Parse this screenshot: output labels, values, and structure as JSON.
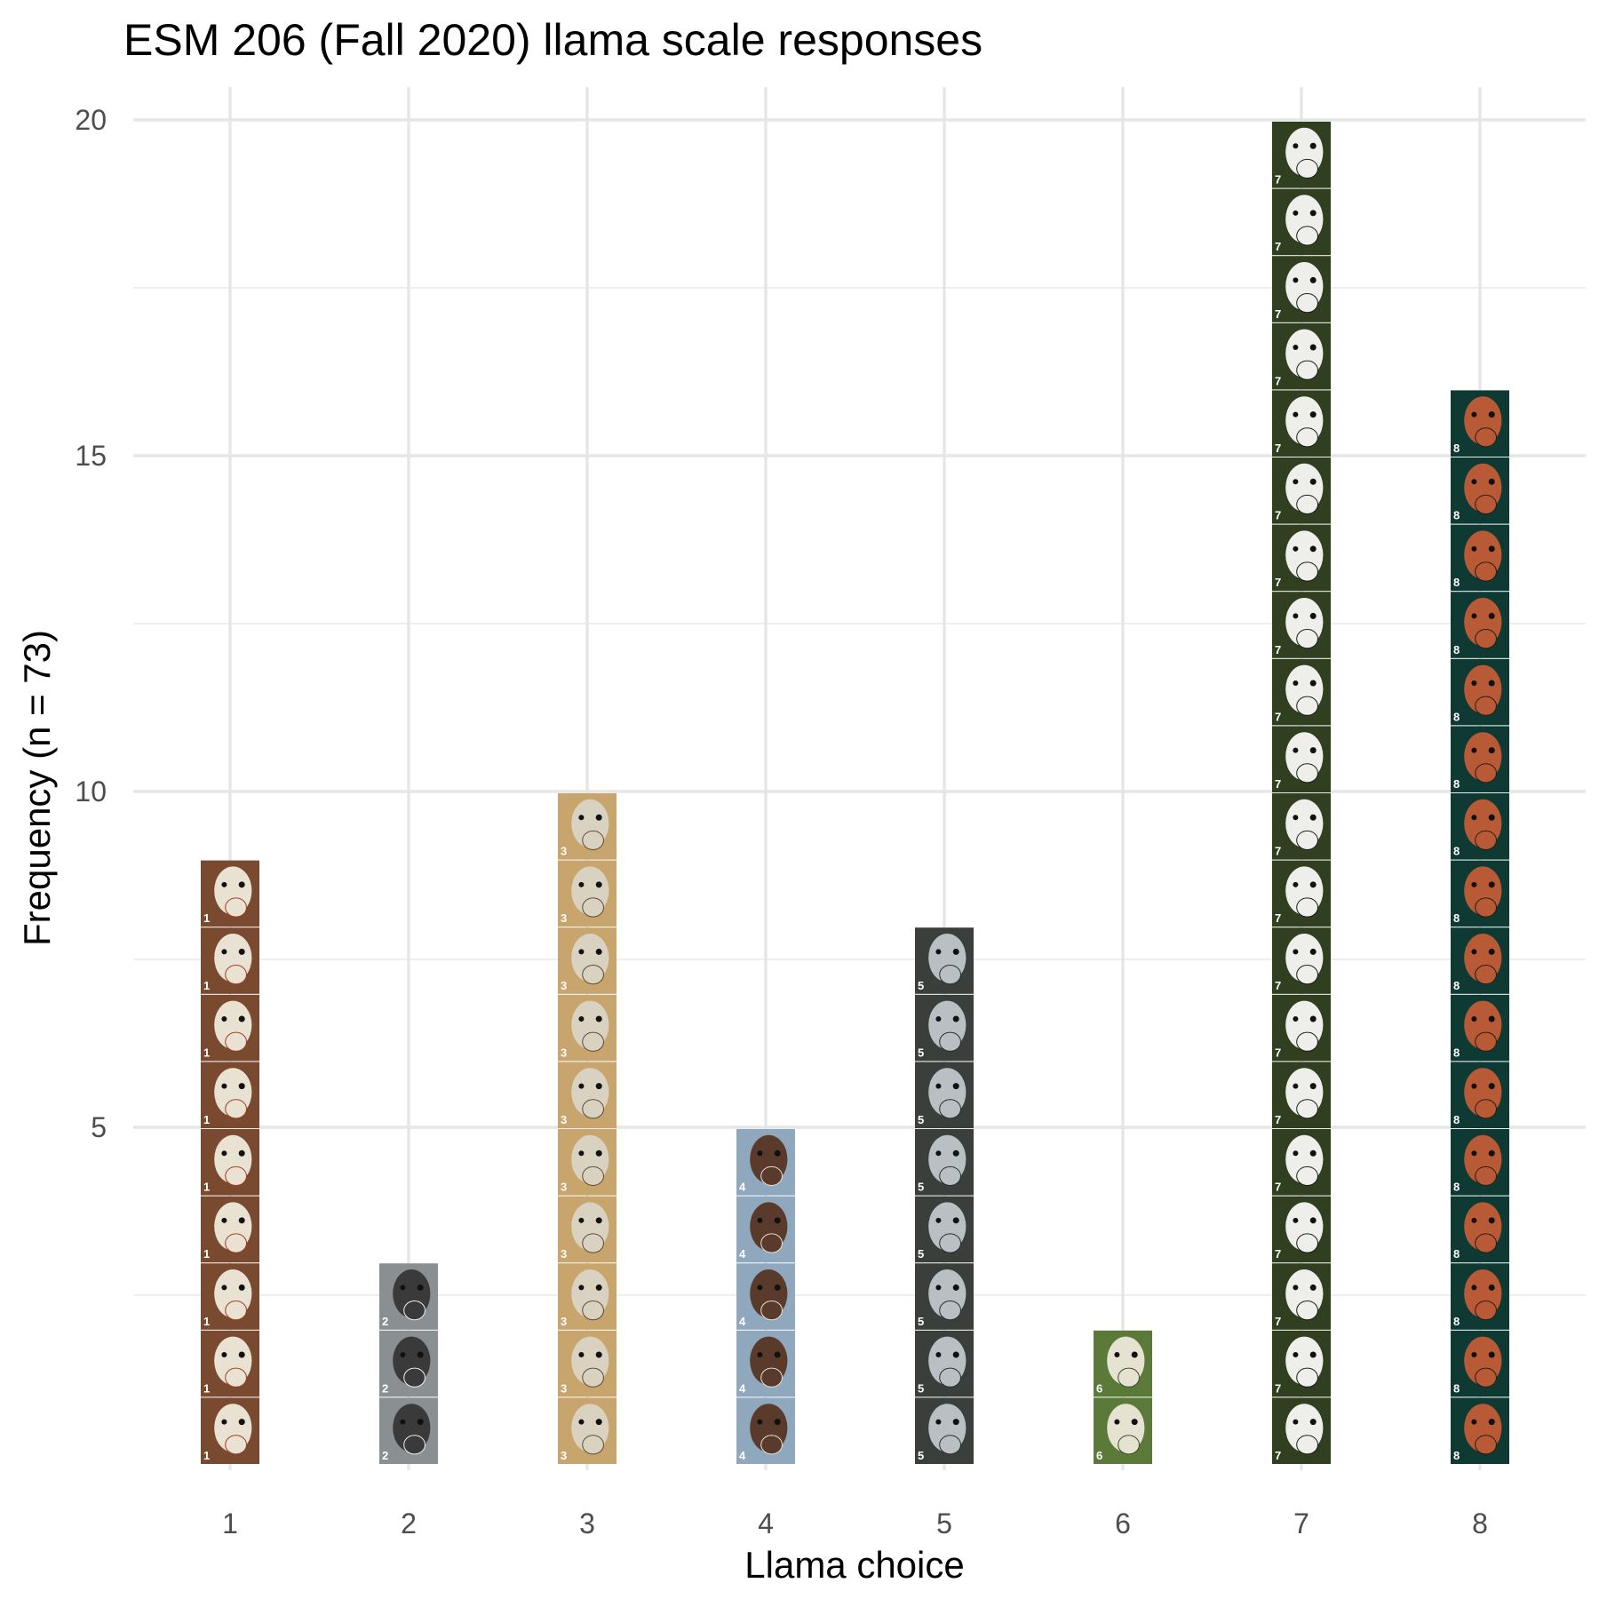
{
  "chart_data": {
    "type": "bar",
    "title": "ESM 206 (Fall 2020) llama scale responses",
    "xlabel": "Llama choice",
    "ylabel": "Frequency (n = 73)",
    "categories": [
      "1",
      "2",
      "3",
      "4",
      "5",
      "6",
      "7",
      "8"
    ],
    "values": [
      9,
      3,
      10,
      5,
      8,
      2,
      20,
      16
    ],
    "y_ticks": [
      "5",
      "10",
      "15",
      "20"
    ],
    "ylim": [
      0,
      21
    ],
    "grid": true,
    "legend": "none",
    "tile_styles": [
      {
        "category": "1",
        "bg": "#7a4a30",
        "face": "#e9e2d2",
        "accent": "#a23a22",
        "tag": "1"
      },
      {
        "category": "2",
        "bg": "#8a8f92",
        "face": "#3a3a3a",
        "accent": "#f2f2f2",
        "tag": "2"
      },
      {
        "category": "3",
        "bg": "#c7a56c",
        "face": "#d9d2c0",
        "accent": "#5b4a35",
        "tag": "3"
      },
      {
        "category": "4",
        "bg": "#8fa8bd",
        "face": "#5a3a2a",
        "accent": "#e8e2d8",
        "tag": "4"
      },
      {
        "category": "5",
        "bg": "#3a3f3c",
        "face": "#b8c0c4",
        "accent": "#2a2a2a",
        "tag": "5"
      },
      {
        "category": "6",
        "bg": "#5b7a3a",
        "face": "#e6e2d2",
        "accent": "#3a4a2a",
        "tag": "6"
      },
      {
        "category": "7",
        "bg": "#2f3f1f",
        "face": "#eeeeea",
        "accent": "#1a1a1a",
        "tag": "7"
      },
      {
        "category": "8",
        "bg": "#0e3a33",
        "face": "#b85a36",
        "accent": "#2a1a12",
        "tag": "8"
      }
    ]
  }
}
